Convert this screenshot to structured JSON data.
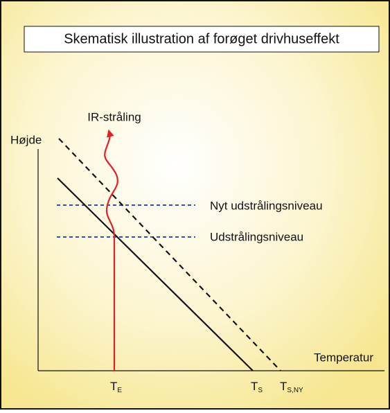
{
  "title": "Skematisk illustration af forøget drivhuseffekt",
  "axes": {
    "y_label": "Højde",
    "x_label": "Temperatur"
  },
  "ticks": [
    {
      "main": "T",
      "sub": "E"
    },
    {
      "main": "T",
      "sub": "S"
    },
    {
      "main": "T",
      "sub": "S,NY"
    }
  ],
  "levels": [
    "Nyt udstrålingsniveau",
    "Udstrålingsniveau"
  ],
  "radiation_label": "IR-stråling"
}
